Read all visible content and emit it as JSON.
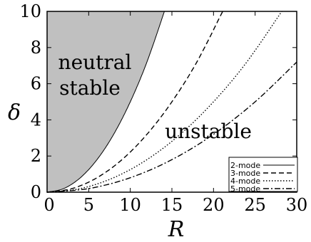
{
  "chart_data": {
    "type": "line",
    "xlabel": "R",
    "ylabel": "δ",
    "xlim": [
      0,
      30
    ],
    "ylim": [
      0,
      10
    ],
    "x_ticks": [
      "0",
      "5",
      "10",
      "15",
      "20",
      "25",
      "30"
    ],
    "y_ticks": [
      "0",
      "2",
      "4",
      "6",
      "8",
      "10"
    ],
    "grid": false,
    "legend_position": "bottom-right",
    "shaded_region_color": "#c0c0c0",
    "regions": [
      {
        "label_lines": [
          "neutral",
          "stable"
        ]
      },
      {
        "label_lines": [
          "unstable"
        ]
      }
    ],
    "series": [
      {
        "name": "2-mode",
        "dash": "solid",
        "x": [
          0,
          2,
          4,
          6,
          8,
          10,
          12,
          14.1
        ],
        "y": [
          0,
          0.2,
          0.8,
          1.8,
          3.2,
          5.0,
          7.2,
          10.0
        ]
      },
      {
        "name": "3-mode",
        "dash": "dashed",
        "x": [
          0,
          3,
          6,
          9,
          12,
          15,
          18,
          21.1
        ],
        "y": [
          0,
          0.2,
          0.8,
          1.8,
          3.2,
          5.0,
          7.2,
          10.0
        ]
      },
      {
        "name": "4-mode",
        "dash": "dotted",
        "x": [
          0,
          4,
          8,
          12,
          16,
          20,
          24,
          28.2
        ],
        "y": [
          0,
          0.2,
          0.8,
          1.8,
          3.2,
          5.0,
          7.2,
          10.0
        ]
      },
      {
        "name": "5-mode",
        "dash": "dashdot",
        "x": [
          0,
          5,
          10,
          15,
          20,
          25,
          30
        ],
        "y": [
          0,
          0.2,
          0.8,
          1.8,
          3.2,
          5.0,
          7.2
        ]
      }
    ]
  }
}
